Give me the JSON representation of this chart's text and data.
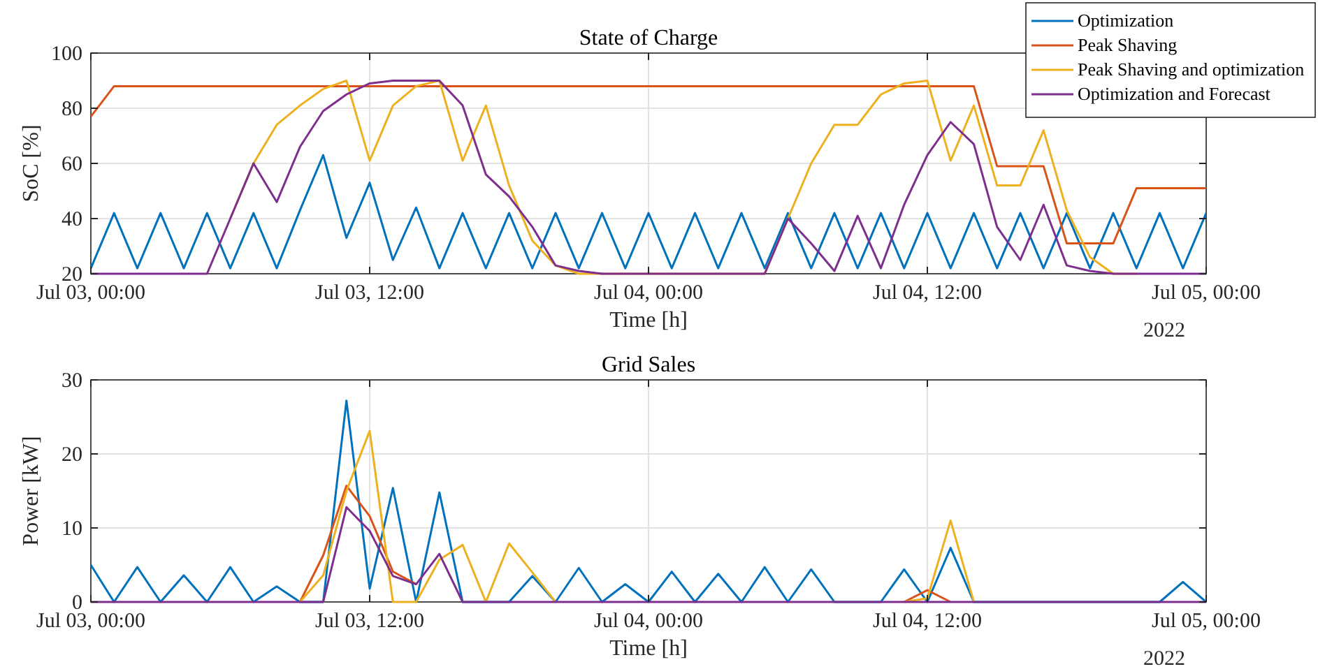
{
  "chart_data": [
    {
      "type": "line",
      "title": "State of Charge",
      "xlabel": "Time [h]",
      "ylabel": "SoC [%]",
      "x": [
        "2022-07-03T00:00",
        "2022-07-03T01:00",
        "2022-07-03T02:00",
        "2022-07-03T03:00",
        "2022-07-03T04:00",
        "2022-07-03T05:00",
        "2022-07-03T06:00",
        "2022-07-03T07:00",
        "2022-07-03T08:00",
        "2022-07-03T09:00",
        "2022-07-03T10:00",
        "2022-07-03T11:00",
        "2022-07-03T12:00",
        "2022-07-03T13:00",
        "2022-07-03T14:00",
        "2022-07-03T15:00",
        "2022-07-03T16:00",
        "2022-07-03T17:00",
        "2022-07-03T18:00",
        "2022-07-03T19:00",
        "2022-07-03T20:00",
        "2022-07-03T21:00",
        "2022-07-03T22:00",
        "2022-07-03T23:00",
        "2022-07-04T00:00",
        "2022-07-04T01:00",
        "2022-07-04T02:00",
        "2022-07-04T03:00",
        "2022-07-04T04:00",
        "2022-07-04T05:00",
        "2022-07-04T06:00",
        "2022-07-04T07:00",
        "2022-07-04T08:00",
        "2022-07-04T09:00",
        "2022-07-04T10:00",
        "2022-07-04T11:00",
        "2022-07-04T12:00",
        "2022-07-04T13:00",
        "2022-07-04T14:00",
        "2022-07-04T15:00",
        "2022-07-04T16:00",
        "2022-07-04T17:00",
        "2022-07-04T18:00",
        "2022-07-04T19:00",
        "2022-07-04T20:00",
        "2022-07-04T21:00",
        "2022-07-04T22:00",
        "2022-07-04T23:00",
        "2022-07-05T00:00"
      ],
      "xlim": [
        "2022-07-03T00:00",
        "2022-07-05T00:00"
      ],
      "xticks": [
        {
          "value": "2022-07-03T00:00",
          "label": "Jul 03, 00:00"
        },
        {
          "value": "2022-07-03T12:00",
          "label": "Jul 03, 12:00"
        },
        {
          "value": "2022-07-04T00:00",
          "label": "Jul 04, 00:00"
        },
        {
          "value": "2022-07-04T12:00",
          "label": "Jul 04, 12:00"
        },
        {
          "value": "2022-07-05T00:00",
          "label": "Jul 05, 00:00"
        }
      ],
      "ylim": [
        20,
        100
      ],
      "yticks": [
        20,
        40,
        60,
        80,
        100
      ],
      "grid": true,
      "legend": "top right",
      "annotations": [
        "2022"
      ],
      "series": [
        {
          "name": "Optimization",
          "color": "#0072bd",
          "values": [
            22,
            42,
            22,
            42,
            22,
            42,
            22,
            42,
            22,
            43,
            63,
            33,
            53,
            25,
            44,
            22,
            42,
            22,
            42,
            22,
            42,
            22,
            42,
            22,
            42,
            22,
            42,
            22,
            42,
            22,
            42,
            22,
            42,
            22,
            42,
            22,
            42,
            22,
            42,
            22,
            42,
            22,
            42,
            22,
            42,
            22,
            42,
            22,
            42
          ]
        },
        {
          "name": "Peak Shaving",
          "color": "#d95319",
          "values": [
            77,
            88,
            88,
            88,
            88,
            88,
            88,
            88,
            88,
            88,
            88,
            88,
            88,
            88,
            88,
            88,
            88,
            88,
            88,
            88,
            88,
            88,
            88,
            88,
            88,
            88,
            88,
            88,
            88,
            88,
            88,
            88,
            88,
            88,
            88,
            88,
            88,
            88,
            88,
            59,
            59,
            59,
            31,
            31,
            31,
            51,
            51,
            51,
            51
          ]
        },
        {
          "name": "Peak Shaving and optimization",
          "color": "#edb120",
          "values": [
            null,
            null,
            null,
            null,
            null,
            null,
            40,
            60,
            74,
            81,
            87,
            90,
            61,
            81,
            88,
            90,
            61,
            81,
            52,
            32,
            23,
            20,
            20,
            20,
            20,
            20,
            20,
            20,
            20,
            20,
            40,
            60,
            74,
            74,
            85,
            89,
            90,
            61,
            81,
            52,
            52,
            72,
            43,
            26,
            20,
            20,
            null,
            null,
            null
          ]
        },
        {
          "name": "Optimization and Forecast",
          "color": "#7e2f8e",
          "values": [
            20,
            20,
            20,
            20,
            20,
            20,
            40,
            60,
            46,
            66,
            79,
            85,
            89,
            90,
            90,
            90,
            81,
            56,
            48,
            37,
            23,
            21,
            20,
            20,
            20,
            20,
            20,
            20,
            20,
            20,
            40,
            31,
            21,
            41,
            22,
            45,
            63,
            75,
            67,
            37,
            25,
            45,
            23,
            21,
            20,
            20,
            20,
            20,
            20
          ]
        }
      ]
    },
    {
      "type": "line",
      "title": "Grid Sales",
      "xlabel": "Time [h]",
      "ylabel": "Power [kW]",
      "x": [
        "2022-07-03T00:00",
        "2022-07-03T01:00",
        "2022-07-03T02:00",
        "2022-07-03T03:00",
        "2022-07-03T04:00",
        "2022-07-03T05:00",
        "2022-07-03T06:00",
        "2022-07-03T07:00",
        "2022-07-03T08:00",
        "2022-07-03T09:00",
        "2022-07-03T10:00",
        "2022-07-03T11:00",
        "2022-07-03T12:00",
        "2022-07-03T13:00",
        "2022-07-03T14:00",
        "2022-07-03T15:00",
        "2022-07-03T16:00",
        "2022-07-03T17:00",
        "2022-07-03T18:00",
        "2022-07-03T19:00",
        "2022-07-03T20:00",
        "2022-07-03T21:00",
        "2022-07-03T22:00",
        "2022-07-03T23:00",
        "2022-07-04T00:00",
        "2022-07-04T01:00",
        "2022-07-04T02:00",
        "2022-07-04T03:00",
        "2022-07-04T04:00",
        "2022-07-04T05:00",
        "2022-07-04T06:00",
        "2022-07-04T07:00",
        "2022-07-04T08:00",
        "2022-07-04T09:00",
        "2022-07-04T10:00",
        "2022-07-04T11:00",
        "2022-07-04T12:00",
        "2022-07-04T13:00",
        "2022-07-04T14:00",
        "2022-07-04T15:00",
        "2022-07-04T16:00",
        "2022-07-04T17:00",
        "2022-07-04T18:00",
        "2022-07-04T19:00",
        "2022-07-04T20:00",
        "2022-07-04T21:00",
        "2022-07-04T22:00",
        "2022-07-04T23:00",
        "2022-07-05T00:00"
      ],
      "xlim": [
        "2022-07-03T00:00",
        "2022-07-05T00:00"
      ],
      "xticks": [
        {
          "value": "2022-07-03T00:00",
          "label": "Jul 03, 00:00"
        },
        {
          "value": "2022-07-03T12:00",
          "label": "Jul 03, 12:00"
        },
        {
          "value": "2022-07-04T00:00",
          "label": "Jul 04, 00:00"
        },
        {
          "value": "2022-07-04T12:00",
          "label": "Jul 04, 12:00"
        },
        {
          "value": "2022-07-05T00:00",
          "label": "Jul 05, 00:00"
        }
      ],
      "ylim": [
        0,
        30
      ],
      "yticks": [
        0,
        10,
        20,
        30
      ],
      "grid": true,
      "annotations": [
        "2022"
      ],
      "series": [
        {
          "color": "#0072bd",
          "values": [
            5,
            0,
            4.7,
            0,
            3.6,
            0,
            4.7,
            0,
            2.1,
            0,
            0,
            27.2,
            1.8,
            15.4,
            0,
            14.8,
            0,
            0,
            0,
            3.5,
            0,
            4.6,
            0,
            2.4,
            0,
            4.1,
            0,
            3.8,
            0,
            4.7,
            0,
            4.4,
            0,
            0,
            0,
            4.4,
            0,
            7.3,
            0,
            0,
            0,
            0,
            0,
            0,
            0,
            0,
            0,
            2.7,
            0
          ]
        },
        {
          "color": "#d95319",
          "values": [
            null,
            null,
            null,
            null,
            null,
            null,
            null,
            null,
            null,
            0,
            6.3,
            15.7,
            11.6,
            4.1,
            2.4,
            null,
            null,
            null,
            null,
            null,
            null,
            null,
            null,
            null,
            null,
            null,
            null,
            null,
            null,
            null,
            null,
            null,
            null,
            null,
            null,
            0,
            1.6,
            0,
            null,
            null,
            null,
            null,
            null,
            null,
            null,
            null,
            null,
            null,
            null
          ]
        },
        {
          "color": "#edb120",
          "values": [
            null,
            null,
            null,
            null,
            null,
            null,
            null,
            null,
            null,
            0,
            3.6,
            15,
            23.1,
            0,
            0,
            5.7,
            7.7,
            0,
            7.9,
            4,
            0,
            null,
            null,
            null,
            null,
            null,
            null,
            null,
            null,
            null,
            null,
            null,
            null,
            null,
            null,
            0,
            0.5,
            11,
            0,
            null,
            null,
            null,
            null,
            null,
            null,
            null,
            null,
            null,
            null
          ]
        },
        {
          "color": "#7e2f8e",
          "values": [
            0,
            0,
            0,
            0,
            0,
            0,
            0,
            0,
            0,
            0,
            0,
            12.8,
            9.6,
            3.5,
            2.4,
            6.5,
            0,
            0,
            0,
            0,
            0,
            0,
            0,
            0,
            0,
            0,
            0,
            0,
            0,
            0,
            0,
            0,
            0,
            0,
            0,
            0,
            0,
            0,
            0,
            0,
            0,
            0,
            0,
            0,
            0,
            0,
            0,
            0,
            0
          ]
        }
      ]
    }
  ]
}
